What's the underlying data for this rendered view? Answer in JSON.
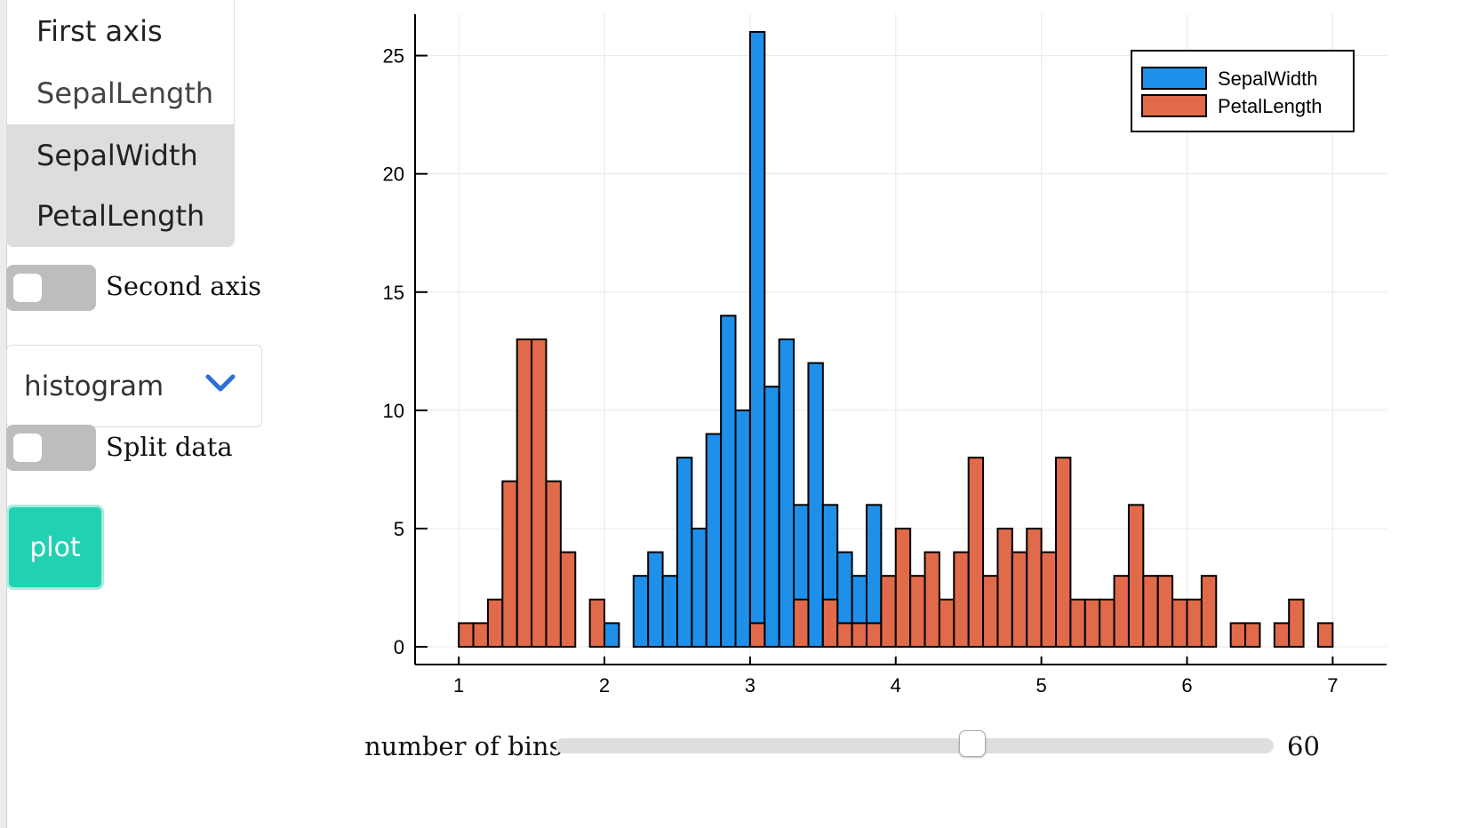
{
  "axis_list": {
    "header": "First axis",
    "options": [
      {
        "label": "SepalLength",
        "selected": false
      },
      {
        "label": "SepalWidth",
        "selected": true
      },
      {
        "label": "PetalLength",
        "selected": true
      }
    ]
  },
  "second_axis": {
    "label": "Second axis",
    "on": false
  },
  "plot_type": {
    "value": "histogram"
  },
  "split_data": {
    "label": "Split data",
    "on": false
  },
  "plot_button": {
    "label": "plot"
  },
  "bins": {
    "label": "number of bins",
    "value": 60,
    "fraction": 0.58
  },
  "colors": {
    "series1": "#1e90ea",
    "series2": "#e06a4a",
    "accent": "#22d1b2",
    "chevron": "#2c6fd6"
  },
  "chart_data": {
    "type": "bar",
    "xlim": [
      0.7,
      7.37
    ],
    "ylim": [
      -0.75,
      26.75
    ],
    "xticks": [
      "1",
      "2",
      "3",
      "4",
      "5",
      "6",
      "7"
    ],
    "yticks": [
      "0",
      "5",
      "10",
      "15",
      "20",
      "25"
    ],
    "grid": true,
    "legend_position": "top-right",
    "bin_width": 0.1,
    "series": [
      {
        "name": "SepalWidth",
        "bins": [
          [
            2.0,
            1
          ],
          [
            2.2,
            3
          ],
          [
            2.3,
            4
          ],
          [
            2.4,
            3
          ],
          [
            2.5,
            8
          ],
          [
            2.6,
            5
          ],
          [
            2.7,
            9
          ],
          [
            2.8,
            14
          ],
          [
            2.9,
            10
          ],
          [
            3.0,
            26
          ],
          [
            3.1,
            11
          ],
          [
            3.2,
            13
          ],
          [
            3.3,
            6
          ],
          [
            3.4,
            12
          ],
          [
            3.5,
            6
          ],
          [
            3.6,
            4
          ],
          [
            3.7,
            3
          ],
          [
            3.8,
            6
          ],
          [
            3.9,
            2
          ],
          [
            4.0,
            1
          ],
          [
            4.1,
            1
          ],
          [
            4.2,
            1
          ],
          [
            4.4,
            1
          ]
        ]
      },
      {
        "name": "PetalLength",
        "bins": [
          [
            1.0,
            1
          ],
          [
            1.1,
            1
          ],
          [
            1.2,
            2
          ],
          [
            1.3,
            7
          ],
          [
            1.4,
            13
          ],
          [
            1.5,
            13
          ],
          [
            1.6,
            7
          ],
          [
            1.7,
            4
          ],
          [
            1.9,
            2
          ],
          [
            3.0,
            1
          ],
          [
            3.3,
            2
          ],
          [
            3.5,
            2
          ],
          [
            3.6,
            1
          ],
          [
            3.7,
            1
          ],
          [
            3.8,
            1
          ],
          [
            3.9,
            3
          ],
          [
            4.0,
            5
          ],
          [
            4.1,
            3
          ],
          [
            4.2,
            4
          ],
          [
            4.3,
            2
          ],
          [
            4.4,
            4
          ],
          [
            4.5,
            8
          ],
          [
            4.6,
            3
          ],
          [
            4.7,
            5
          ],
          [
            4.8,
            4
          ],
          [
            4.9,
            5
          ],
          [
            5.0,
            4
          ],
          [
            5.1,
            8
          ],
          [
            5.2,
            2
          ],
          [
            5.3,
            2
          ],
          [
            5.4,
            2
          ],
          [
            5.5,
            3
          ],
          [
            5.6,
            6
          ],
          [
            5.7,
            3
          ],
          [
            5.8,
            3
          ],
          [
            5.9,
            2
          ],
          [
            6.0,
            2
          ],
          [
            6.1,
            3
          ],
          [
            6.3,
            1
          ],
          [
            6.4,
            1
          ],
          [
            6.6,
            1
          ],
          [
            6.7,
            2
          ],
          [
            6.9,
            1
          ]
        ]
      }
    ]
  }
}
